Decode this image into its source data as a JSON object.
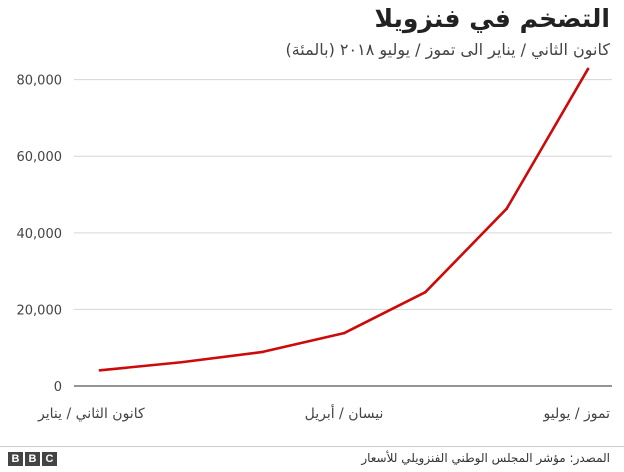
{
  "chart_data": {
    "type": "line",
    "title": "التضخم في فنزويلا",
    "subtitle": "كانون الثاني / يناير الى تموز / يوليو ٢٠١٨ (بالمئة)",
    "x_tick_labels": [
      "كانون الثاني / يناير",
      "نيسان / أبريل",
      "تموز / يوليو"
    ],
    "x_tick_indices": [
      0,
      3,
      6
    ],
    "y_ticks": [
      0,
      20000,
      40000,
      60000,
      80000
    ],
    "y_tick_labels": [
      "0",
      "20,000",
      "40,000",
      "60,000",
      "80,000"
    ],
    "ylim": [
      0,
      82000
    ],
    "grid": true,
    "series": [
      {
        "color": "#cc0a0a",
        "values": [
          4100,
          6200,
          8900,
          13800,
          24500,
          46300,
          82800
        ]
      }
    ]
  },
  "footer": {
    "source": "المصدر: مؤشر المجلس الوطني الفنزويلي للأسعار",
    "logo_letters": [
      "B",
      "B",
      "C"
    ]
  }
}
